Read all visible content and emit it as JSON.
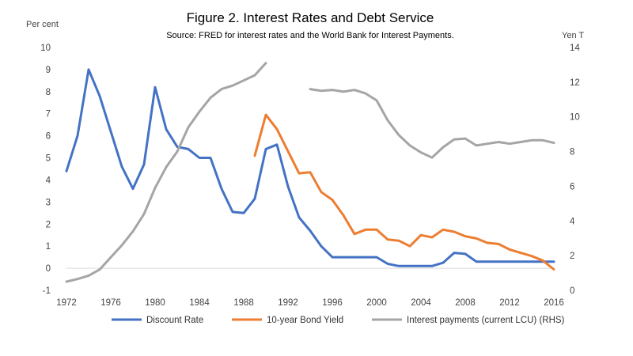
{
  "chart_data": {
    "type": "line",
    "title": "Figure 2. Interest Rates and Debt Service",
    "subtitle": "Source: FRED for interest rates and the World Bank for Interest Payments.",
    "ylabel": "Per cent",
    "y2label": "Yen T",
    "xlim": [
      1972,
      2016
    ],
    "ylim": [
      -1,
      10
    ],
    "y2lim": [
      0,
      14
    ],
    "x_ticks": [
      "1972",
      "1976",
      "1980",
      "1984",
      "1988",
      "1992",
      "1996",
      "2000",
      "2004",
      "2008",
      "2012",
      "2016"
    ],
    "y_ticks": [
      "10",
      "9",
      "8",
      "7",
      "6",
      "5",
      "4",
      "3",
      "2",
      "1",
      "0",
      "-1"
    ],
    "y2_ticks": [
      "14",
      "12",
      "10",
      "8",
      "6",
      "4",
      "2",
      "0"
    ],
    "grid": false,
    "legend_position": "bottom",
    "series": [
      {
        "name": "Discount Rate",
        "axis": "left",
        "color": "#4472C4",
        "x": [
          1972,
          1973,
          1974,
          1975,
          1976,
          1977,
          1978,
          1979,
          1980,
          1981,
          1982,
          1983,
          1984,
          1985,
          1986,
          1987,
          1988,
          1989,
          1990,
          1991,
          1992,
          1993,
          1994,
          1995,
          1996,
          1997,
          1998,
          1999,
          2000,
          2001,
          2002,
          2003,
          2004,
          2005,
          2006,
          2007,
          2008,
          2009,
          2010,
          2011,
          2012,
          2013,
          2014,
          2015,
          2016
        ],
        "values": [
          4.4,
          6.0,
          9.0,
          7.8,
          6.2,
          4.6,
          3.6,
          4.7,
          8.2,
          6.3,
          5.5,
          5.4,
          5.0,
          5.0,
          3.6,
          2.55,
          2.5,
          3.15,
          5.4,
          5.6,
          3.7,
          2.3,
          1.7,
          1.0,
          0.5,
          0.5,
          0.5,
          0.5,
          0.5,
          0.2,
          0.1,
          0.1,
          0.1,
          0.1,
          0.25,
          0.7,
          0.65,
          0.3,
          0.3,
          0.3,
          0.3,
          0.3,
          0.3,
          0.3,
          0.3
        ]
      },
      {
        "name": "10-year Bond Yield",
        "axis": "left",
        "color": "#ED7D31",
        "x": [
          1989,
          1990,
          1991,
          1992,
          1993,
          1994,
          1995,
          1996,
          1997,
          1998,
          1999,
          2000,
          2001,
          2002,
          2003,
          2004,
          2005,
          2006,
          2007,
          2008,
          2009,
          2010,
          2011,
          2012,
          2013,
          2014,
          2015,
          2016
        ],
        "values": [
          5.1,
          6.95,
          6.3,
          5.3,
          4.3,
          4.35,
          3.45,
          3.1,
          2.4,
          1.55,
          1.75,
          1.75,
          1.3,
          1.25,
          1.0,
          1.5,
          1.4,
          1.75,
          1.65,
          1.45,
          1.35,
          1.15,
          1.1,
          0.85,
          0.7,
          0.55,
          0.35,
          -0.05
        ]
      },
      {
        "name": "Interest payments (current LCU) (RHS)",
        "axis": "right",
        "color": "#A5A5A5",
        "x": [
          1972,
          1973,
          1974,
          1975,
          1976,
          1977,
          1978,
          1979,
          1980,
          1981,
          1982,
          1983,
          1984,
          1985,
          1986,
          1987,
          1988,
          1989,
          1990,
          null,
          1994,
          1995,
          1996,
          1997,
          1998,
          1999,
          2000,
          2001,
          2002,
          2003,
          2004,
          2005,
          2006,
          2007,
          2008,
          2009,
          2010,
          2011,
          2012,
          2013,
          2014,
          2015,
          2016
        ],
        "values": [
          0.5,
          0.65,
          0.85,
          1.2,
          1.9,
          2.6,
          3.4,
          4.4,
          5.9,
          7.1,
          8.0,
          9.4,
          10.3,
          11.1,
          11.6,
          11.8,
          12.1,
          12.4,
          13.1,
          null,
          11.6,
          11.5,
          11.55,
          11.45,
          11.55,
          11.35,
          10.95,
          9.8,
          8.95,
          8.35,
          7.95,
          7.65,
          8.25,
          8.7,
          8.75,
          8.35,
          8.45,
          8.55,
          8.45,
          8.55,
          8.65,
          8.65,
          8.5
        ]
      }
    ]
  }
}
